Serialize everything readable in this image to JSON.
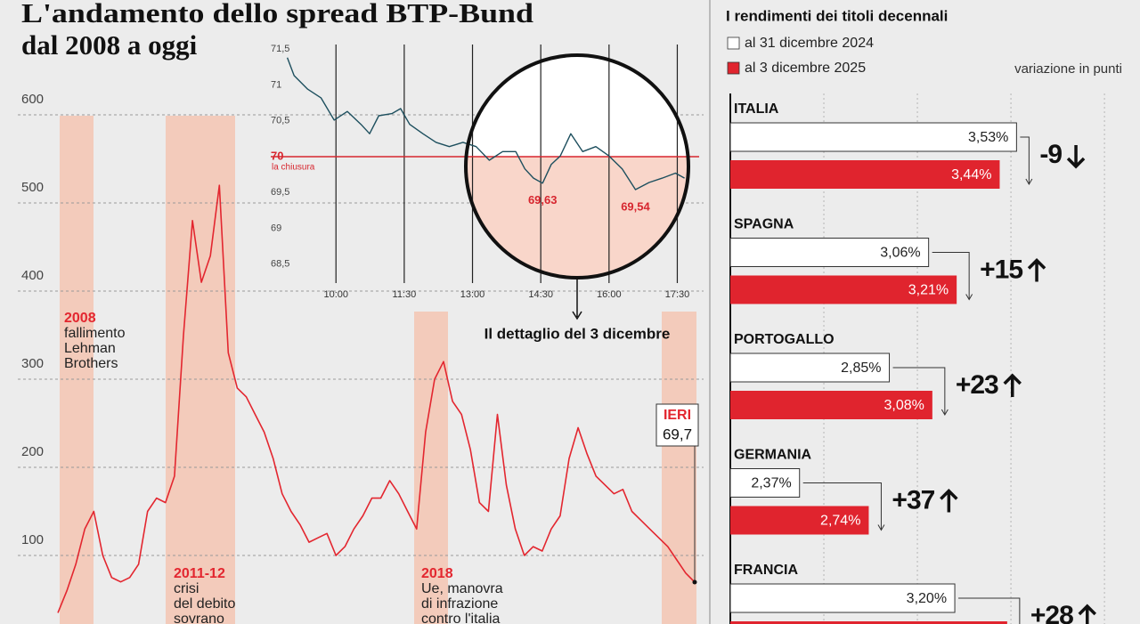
{
  "chart_data": [
    {
      "type": "line",
      "title": [
        "L'andamento dello spread BTP-Bund",
        "dal 2008 a oggi"
      ],
      "values": [
        35,
        60,
        90,
        130,
        150,
        100,
        75,
        70,
        75,
        90,
        150,
        165,
        160,
        190,
        350,
        480,
        410,
        440,
        520,
        330,
        290,
        280,
        260,
        240,
        210,
        170,
        150,
        135,
        115,
        120,
        125,
        100,
        110,
        130,
        145,
        165,
        165,
        185,
        170,
        150,
        130,
        240,
        300,
        320,
        275,
        260,
        220,
        160,
        150,
        260,
        180,
        130,
        100,
        110,
        105,
        130,
        145,
        210,
        245,
        215,
        190,
        180,
        170,
        175,
        150,
        140,
        130,
        120,
        110,
        95,
        80,
        69.7
      ],
      "value_labels": [
        null,
        null,
        null,
        null,
        null,
        null,
        null,
        null,
        null,
        null,
        null,
        null,
        null,
        null,
        null,
        null,
        null,
        null,
        null,
        null,
        null,
        null,
        null,
        null,
        null,
        null,
        null,
        null,
        null,
        null,
        null,
        null,
        null,
        null,
        null,
        null,
        null,
        null,
        null,
        null,
        null,
        null,
        null,
        null,
        null,
        null,
        null,
        null,
        null,
        null,
        null,
        null,
        null,
        null,
        null,
        null,
        null,
        null,
        null,
        null,
        null,
        null,
        null,
        null,
        null,
        null,
        null,
        null,
        null,
        null,
        null,
        "69,7"
      ],
      "color": "#e3262f",
      "ylim": [
        0,
        600
      ],
      "yticks": [
        100,
        200,
        300,
        400,
        500,
        600
      ],
      "grid": "y",
      "end_label": "IERI",
      "annotations": [
        {
          "label": "2008",
          "text": [
            "fallimento",
            "Lehman",
            "Brothers"
          ]
        },
        {
          "label": "2011-12",
          "text": [
            "crisi",
            "del debito",
            "sovrano"
          ]
        },
        {
          "label": "2018",
          "text": [
            "Ue, manovra",
            "di infrazione",
            "contro l'italia"
          ]
        }
      ]
    },
    {
      "type": "line",
      "x": [
        8.93,
        9.08,
        9.38,
        9.67,
        9.96,
        10.25,
        10.55,
        10.74,
        10.94,
        11.23,
        11.42,
        11.62,
        11.91,
        12.2,
        12.49,
        12.79,
        13.08,
        13.37,
        13.66,
        13.95,
        14.15,
        14.34,
        14.54,
        14.73,
        14.93,
        15.16,
        15.42,
        15.71,
        16.0,
        16.29,
        16.58,
        16.88,
        17.17,
        17.46,
        17.66
      ],
      "values": [
        71.38,
        71.13,
        70.94,
        70.82,
        70.51,
        70.63,
        70.45,
        70.32,
        70.57,
        70.6,
        70.67,
        70.45,
        70.32,
        70.2,
        70.14,
        70.2,
        70.14,
        69.95,
        70.07,
        70.07,
        69.83,
        69.7,
        69.63,
        69.89,
        70.01,
        70.32,
        70.07,
        70.14,
        70.01,
        69.83,
        69.54,
        69.64,
        69.7,
        69.77,
        69.7
      ],
      "value_labels": [
        null,
        null,
        null,
        null,
        null,
        null,
        null,
        null,
        null,
        null,
        null,
        null,
        null,
        null,
        null,
        null,
        null,
        null,
        null,
        null,
        null,
        null,
        "69,63",
        null,
        null,
        null,
        null,
        null,
        null,
        null,
        "69,54",
        null,
        null,
        null,
        null
      ],
      "color": "#1d4f5e",
      "xlim": [
        8.88,
        17.98
      ],
      "ylim": [
        68.2,
        71.7
      ],
      "xticks": [
        {
          "value": 10,
          "label": "10:00"
        },
        {
          "value": 11.5,
          "label": "11:30"
        },
        {
          "value": 13,
          "label": "13:00"
        },
        {
          "value": 14.5,
          "label": "14:30"
        },
        {
          "value": 16,
          "label": "16:00"
        },
        {
          "value": 17.5,
          "label": "17:30"
        }
      ],
      "yticks": [
        {
          "value": 71.5,
          "label": "71,5"
        },
        71,
        {
          "value": 70.5,
          "label": "70,5"
        },
        70,
        {
          "value": 69.5,
          "label": "69,5"
        },
        69,
        {
          "value": 68.5,
          "label": "68,5"
        }
      ],
      "grid": "x",
      "reference": {
        "value": 70,
        "label": "la chiusura",
        "color": "#d7262f"
      },
      "caption": "Il dettaglio del 3 dicembre"
    },
    {
      "type": "bar",
      "orientation": "horizontal",
      "title": "I rendimenti dei titoli decennali",
      "categories": [
        "ITALIA",
        "SPAGNA",
        "PORTOGALLO",
        "GERMANIA",
        "FRANCIA"
      ],
      "series": [
        {
          "name": "al 31 dicembre 2024",
          "color": "#ffffff",
          "values": [
            3.53,
            3.06,
            2.85,
            2.37,
            3.2
          ],
          "value_labels": [
            "3,53%",
            "3,06%",
            "2,85%",
            "2,37%",
            "3,20%"
          ]
        },
        {
          "name": "al 3 dicembre 2025",
          "color": "#e0242e",
          "values": [
            3.44,
            3.21,
            3.08,
            2.74,
            3.48
          ],
          "value_labels": [
            "3,44%",
            "3,21%",
            "3,08%",
            "2,74%",
            null
          ]
        }
      ],
      "changes": {
        "title": "variazione in punti",
        "values": [
          -9,
          15,
          23,
          37,
          28
        ],
        "value_labels": [
          "-9",
          "+15",
          "+23",
          "+37",
          "+28"
        ]
      },
      "xlim": [
        2,
        4.19
      ],
      "xticks": [
        2.5,
        3,
        3.5,
        4
      ],
      "grid": "x"
    }
  ]
}
